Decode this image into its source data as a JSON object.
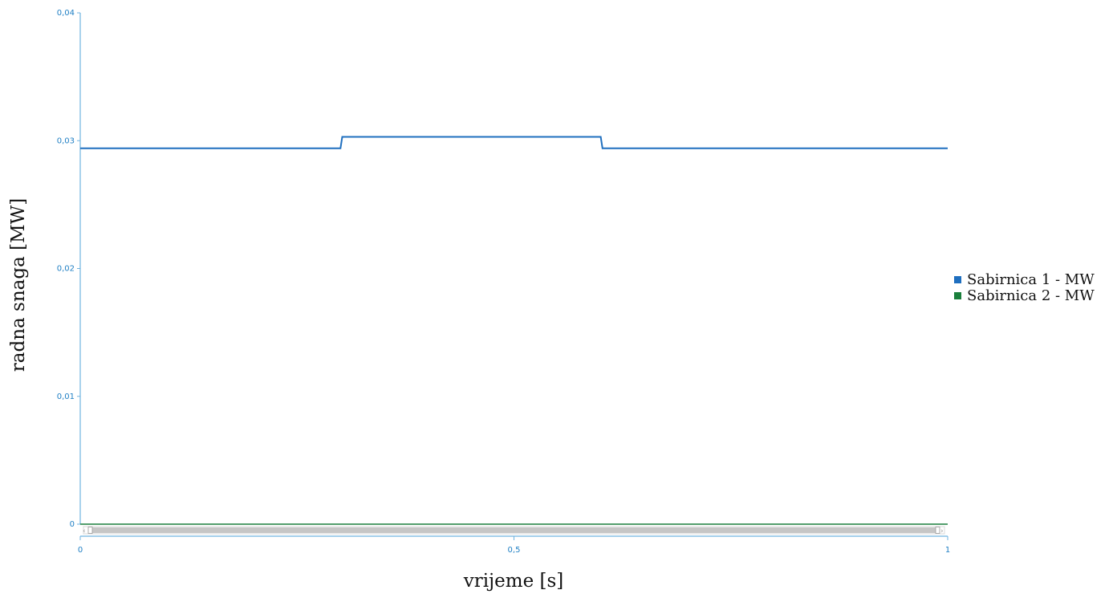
{
  "chart_data": {
    "type": "line",
    "xlabel": "vrijeme [s]",
    "ylabel": "radna snaga [MW]",
    "xlim": [
      0,
      1
    ],
    "ylim": [
      0,
      0.04
    ],
    "x_ticks": [
      {
        "value": 0,
        "label": "0"
      },
      {
        "value": 0.5,
        "label": "0,5"
      },
      {
        "value": 1,
        "label": "1"
      }
    ],
    "y_ticks": [
      {
        "value": 0,
        "label": "0"
      },
      {
        "value": 0.01,
        "label": "0,01"
      },
      {
        "value": 0.02,
        "label": "0,02"
      },
      {
        "value": 0.03,
        "label": "0,03"
      },
      {
        "value": 0.04,
        "label": "0,04"
      }
    ],
    "grid": false,
    "legend_position": "right",
    "series": [
      {
        "name": "Sabirnica 1 - MW",
        "color": "#1f6fbf",
        "points": [
          [
            0,
            0.0294
          ],
          [
            0.3,
            0.0294
          ],
          [
            0.302,
            0.0303
          ],
          [
            0.6,
            0.0303
          ],
          [
            0.602,
            0.0294
          ],
          [
            1,
            0.0294
          ]
        ]
      },
      {
        "name": "Sabirnica 2 - MW",
        "color": "#1a7f3c",
        "points": [
          [
            0,
            0
          ],
          [
            1,
            0
          ]
        ]
      }
    ]
  },
  "scrollbar": {
    "left_arrow": "‹",
    "right_arrow": "›"
  }
}
